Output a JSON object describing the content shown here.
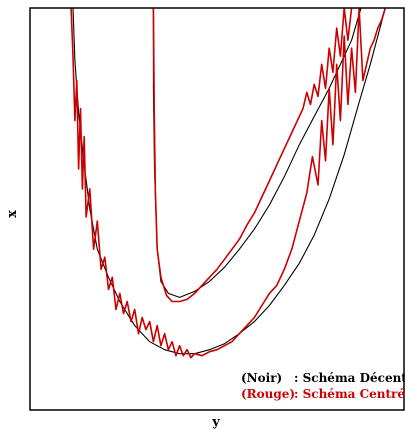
{
  "chart_data": {
    "type": "line",
    "title": "",
    "xlabel": "y",
    "ylabel": "x",
    "xlim": [
      0,
      100
    ],
    "ylim": [
      0,
      100
    ],
    "grid": false,
    "ticks": false,
    "legend": {
      "placement": "bottom-right",
      "entries": [
        {
          "prefix": "(Noir)",
          "text": ": Schéma Décentré",
          "color": "#000000"
        },
        {
          "prefix": "(Rouge)",
          "text": ": Schéma Centré",
          "color": "#cc0000"
        }
      ]
    },
    "series": [
      {
        "color": "#000000",
        "x": [
          11.5,
          12.0,
          13.0,
          14.5,
          16.0,
          18.0,
          21.0,
          24.0,
          28.0,
          32.0,
          36.0,
          40.0,
          44.0,
          48.0,
          52.0,
          56.0,
          60.0,
          64.0,
          68.0,
          72.0,
          76.0,
          80.0,
          84.0,
          88.0,
          91.0,
          95.0
        ],
        "y": [
          100,
          87,
          74,
          61,
          50,
          40,
          33,
          27,
          21,
          17,
          15,
          14,
          14,
          15,
          16.5,
          19,
          22,
          26,
          31,
          36.5,
          43.5,
          52.5,
          63.5,
          76.5,
          86,
          100
        ]
      },
      {
        "color": "#000000",
        "x": [
          33.0,
          33.0,
          33.3,
          34.0,
          35.0,
          37.0,
          40.0,
          44.0,
          48.0,
          52.0,
          56.0,
          60.0,
          64.0,
          68.0,
          72.0,
          76.0,
          80.0,
          83.0,
          86.0,
          88.5
        ],
        "y": [
          100,
          80,
          60,
          40,
          32,
          29,
          28,
          29.5,
          32,
          35.5,
          40,
          45,
          51,
          58,
          66,
          73,
          80,
          86,
          92,
          100
        ]
      },
      {
        "color": "#cc0000",
        "x": [
          11.0,
          11.5,
          12.0,
          12.5,
          13.0,
          13.5,
          14.0,
          14.5,
          15.0,
          16.0,
          17.0,
          18.0,
          19.0,
          20.0,
          21.0,
          22.0,
          23.0,
          24.0,
          25.0,
          26.0,
          27.0,
          28.0,
          29.0,
          30.0,
          31.0,
          32.0,
          33.0,
          34.0,
          35.0,
          36.0,
          37.0,
          38.0,
          39.0,
          40.0,
          41.0,
          42.0,
          43.0,
          44.0,
          46.0,
          48.0,
          50.0,
          52.0,
          54.0,
          56.0,
          58.0,
          60.0,
          62.0,
          64.0,
          66.0,
          68.0,
          70.0,
          72.0,
          74.0,
          75.5,
          77.0,
          78.0,
          79.0,
          80.0,
          81.0,
          82.0,
          83.0,
          84.0,
          85.0,
          86.0,
          87.0,
          88.0,
          89.0,
          90.0,
          91.0,
          92.0,
          93.0,
          94.0,
          95.0
        ],
        "y": [
          100,
          88,
          72,
          82,
          60,
          75,
          55,
          68,
          48,
          55,
          40,
          47,
          35,
          38,
          30,
          33,
          25,
          29,
          24,
          27,
          22,
          25,
          19,
          23,
          20,
          22,
          17,
          21,
          16,
          19,
          15,
          17,
          13.5,
          16,
          13.5,
          15,
          13,
          14,
          13.5,
          14.5,
          15,
          16,
          17,
          19,
          21,
          23,
          26,
          29,
          31,
          35,
          40,
          47,
          54,
          63,
          56,
          72,
          62,
          80,
          66,
          86,
          72,
          93,
          76,
          90,
          79,
          100,
          82,
          86,
          90,
          92,
          95,
          97,
          100
        ]
      },
      {
        "color": "#cc0000",
        "x": [
          33.0,
          33.2,
          33.5,
          34.0,
          35.0,
          36.5,
          38.0,
          40.0,
          42.0,
          44.0,
          46.0,
          48.0,
          50.0,
          52.0,
          54.0,
          56.0,
          58.0,
          60.0,
          62.0,
          64.0,
          66.0,
          68.0,
          70.0,
          72.0,
          73.0,
          74.0,
          75.0,
          76.0,
          77.0,
          78.0,
          79.0,
          80.0,
          81.0,
          82.0,
          83.0,
          84.0,
          85.0,
          86.0
        ],
        "y": [
          100,
          75,
          55,
          40,
          33,
          28.5,
          27,
          27,
          27.5,
          29,
          31,
          33,
          35,
          37.5,
          40,
          42.5,
          46,
          49,
          53,
          57,
          61,
          65,
          69,
          73,
          75,
          79,
          76,
          81,
          78,
          86,
          80,
          90,
          84,
          95,
          88,
          100,
          92,
          100
        ]
      }
    ]
  }
}
